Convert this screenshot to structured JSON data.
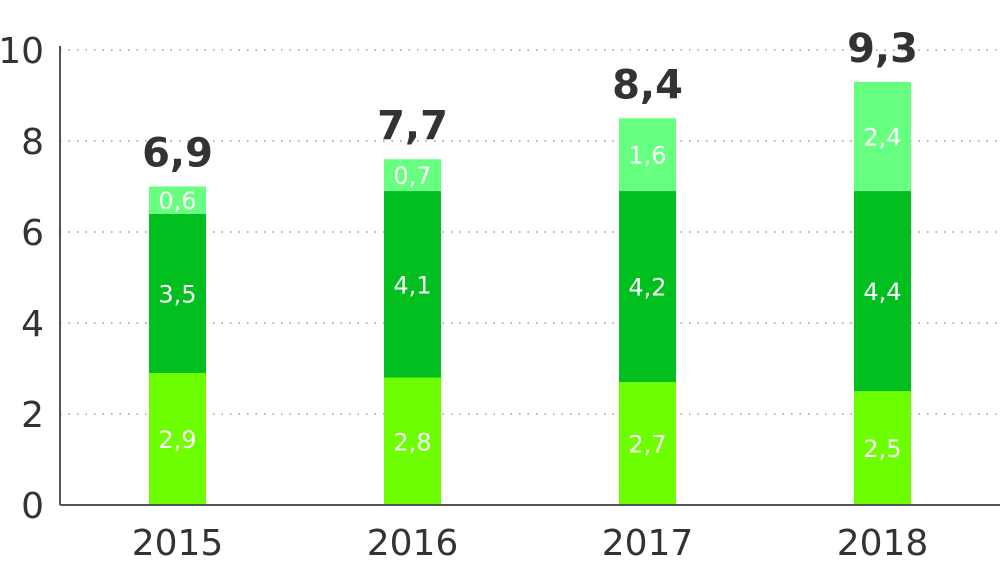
{
  "chart_data": {
    "type": "bar",
    "stacked": true,
    "categories": [
      "2015",
      "2016",
      "2017",
      "2018"
    ],
    "series": [
      {
        "values": [
          2.9,
          2.8,
          2.7,
          2.5
        ],
        "labels": [
          "2,9",
          "2,8",
          "2,7",
          "2,5"
        ],
        "color": "#6dff00"
      },
      {
        "values": [
          3.5,
          4.1,
          4.2,
          4.4
        ],
        "labels": [
          "3,5",
          "4,1",
          "4,2",
          "4,4"
        ],
        "color": "#00bf1f"
      },
      {
        "values": [
          0.6,
          0.7,
          1.6,
          2.4
        ],
        "labels": [
          "0,6",
          "0,7",
          "1,6",
          "2,4"
        ],
        "color": "#66ff80"
      }
    ],
    "totals": [
      6.9,
      7.7,
      8.4,
      9.3
    ],
    "total_labels": [
      "6,9",
      "7,7",
      "8,4",
      "9,3"
    ],
    "ylim": [
      0,
      10
    ],
    "yticks": [
      0,
      2,
      4,
      6,
      8,
      10
    ],
    "ytick_labels": [
      "0",
      "2",
      "4",
      "6",
      "8",
      "10"
    ],
    "grid": "horizontal-dotted",
    "legend": "none",
    "title": "",
    "xlabel": "",
    "ylabel": ""
  }
}
